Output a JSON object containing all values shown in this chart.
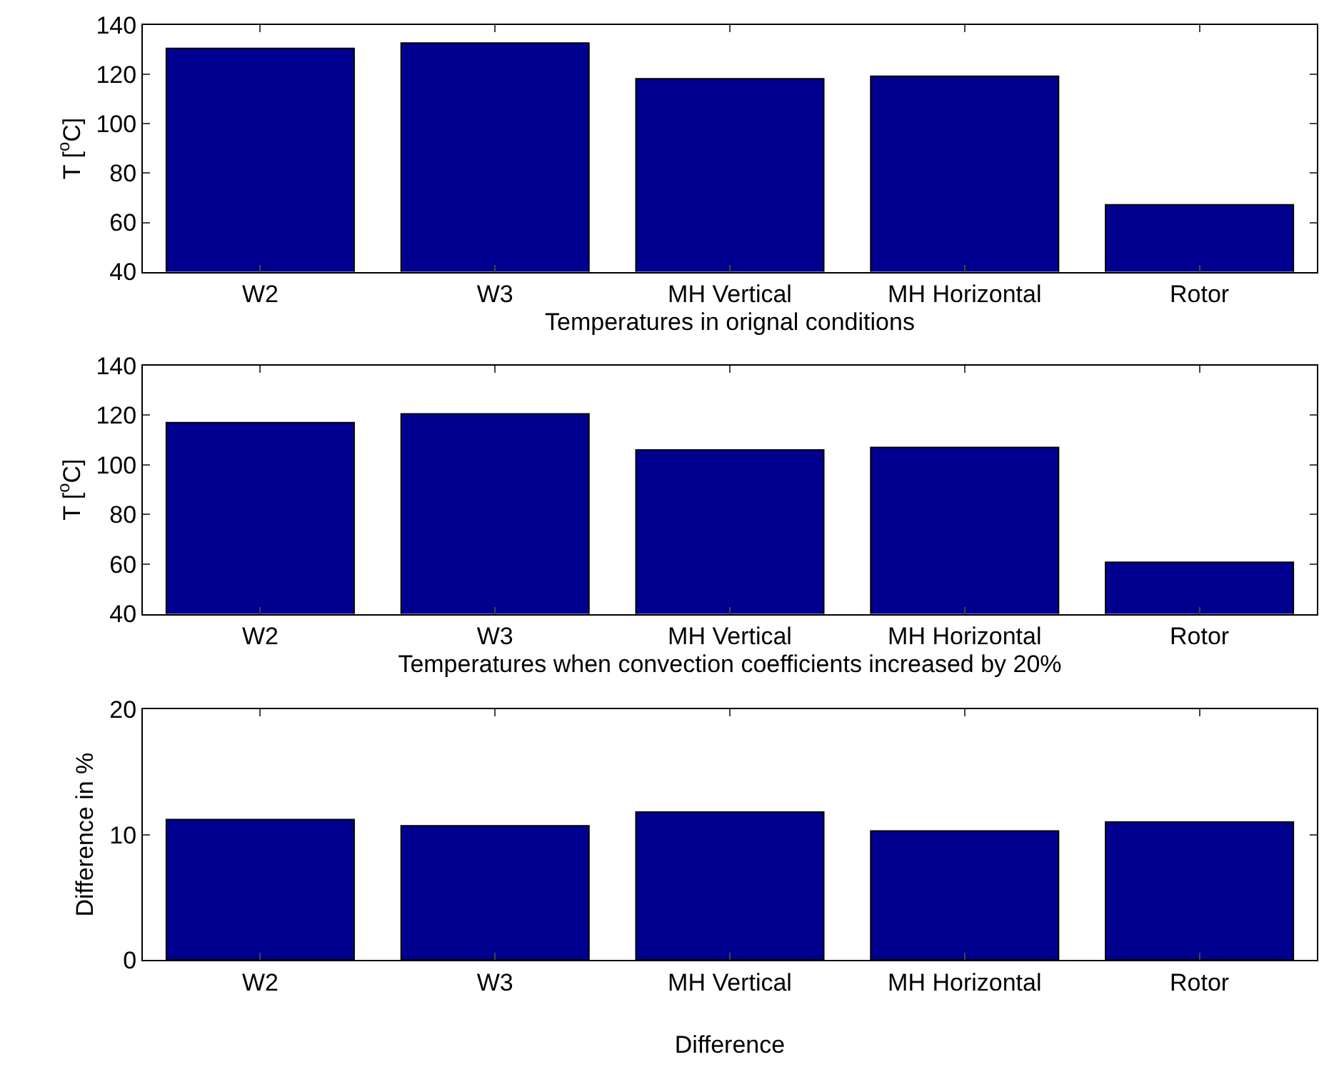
{
  "chart_data": [
    {
      "type": "bar",
      "xlabel": "Temperatures in orignal conditions",
      "ylabel": "T [$^{o}$C]",
      "categories": [
        "W2",
        "W3",
        "MH Vertical",
        "MH Horizontal",
        "Rotor"
      ],
      "values": [
        130.6,
        132.8,
        118.3,
        119.3,
        67.2
      ],
      "color": "#000090",
      "ylim": [
        40,
        140
      ],
      "yticks": [
        40,
        60,
        80,
        100,
        120,
        140
      ],
      "legend": false
    },
    {
      "type": "bar",
      "xlabel": "Temperatures when convection coefficients increased by 20%",
      "ylabel": "T [$^{o}$C]",
      "categories": [
        "W2",
        "W3",
        "MH Vertical",
        "MH Horizontal",
        "Rotor"
      ],
      "values": [
        117,
        120.5,
        106,
        107,
        60.8
      ],
      "color": "#000090",
      "ylim": [
        40,
        140
      ],
      "yticks": [
        40,
        60,
        80,
        100,
        120,
        140
      ],
      "legend": false
    },
    {
      "type": "bar",
      "xlabel": "Difference",
      "ylabel": "Difference in %",
      "categories": [
        "W2",
        "W3",
        "MH Vertical",
        "MH Horizontal",
        "Rotor"
      ],
      "values": [
        11.2,
        10.7,
        11.8,
        10.3,
        11.0
      ],
      "color": "#000090",
      "ylim": [
        0,
        20
      ],
      "yticks": [
        0,
        10,
        20
      ],
      "legend": false
    }
  ]
}
